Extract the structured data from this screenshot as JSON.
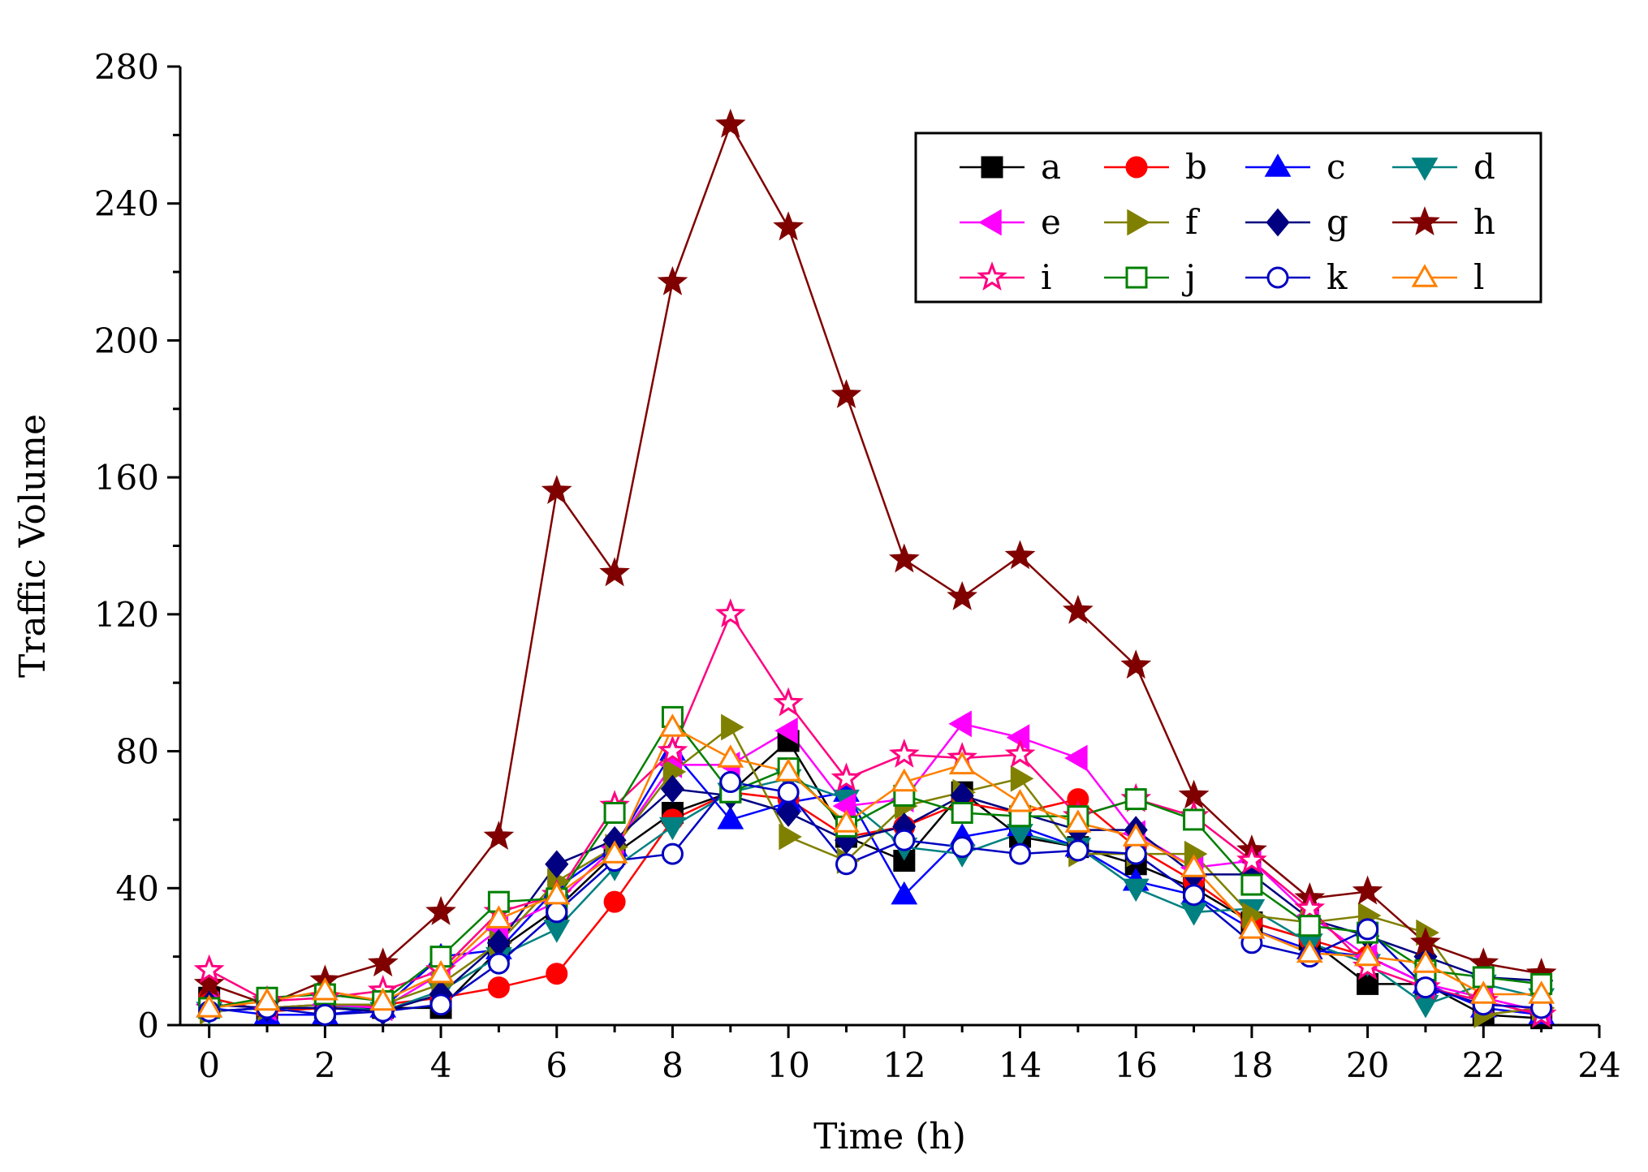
{
  "chart_data": {
    "type": "line",
    "title": "",
    "xlabel": "Time (h)",
    "ylabel": "Traffic Volume",
    "xlim": [
      -0.5,
      24
    ],
    "ylim": [
      0,
      280
    ],
    "xticks": [
      0,
      2,
      4,
      6,
      8,
      10,
      12,
      14,
      16,
      18,
      20,
      22,
      24
    ],
    "xtick_labels": [
      "0",
      "2",
      "4",
      "6",
      "8",
      "10",
      "12",
      "14",
      "16",
      "18",
      "20",
      "22",
      "24"
    ],
    "yticks": [
      0,
      40,
      80,
      120,
      160,
      200,
      240,
      280
    ],
    "ytick_labels": [
      "0",
      "40",
      "80",
      "120",
      "160",
      "200",
      "240",
      "280"
    ],
    "grid": false,
    "legend_position": "top-right",
    "x": [
      0,
      1,
      2,
      3,
      4,
      5,
      6,
      7,
      8,
      9,
      10,
      11,
      12,
      13,
      14,
      15,
      16,
      17,
      18,
      19,
      20,
      21,
      22,
      23
    ],
    "series": [
      {
        "name": "a",
        "color": "#000000",
        "marker": "square",
        "filled": true,
        "values": [
          8,
          4,
          5,
          5,
          5,
          22,
          34,
          50,
          62,
          68,
          83,
          55,
          48,
          68,
          55,
          52,
          47,
          40,
          30,
          25,
          12,
          12,
          3,
          2
        ]
      },
      {
        "name": "b",
        "color": "#ff0000",
        "marker": "circle",
        "filled": true,
        "values": [
          8,
          4,
          5,
          6,
          8,
          11,
          15,
          36,
          60,
          68,
          66,
          55,
          58,
          65,
          62,
          66,
          52,
          42,
          30,
          25,
          20,
          12,
          8,
          4
        ]
      },
      {
        "name": "c",
        "color": "#0000ff",
        "marker": "triangle-up",
        "filled": true,
        "values": [
          5,
          3,
          3,
          5,
          20,
          22,
          40,
          52,
          80,
          60,
          65,
          68,
          38,
          55,
          58,
          52,
          42,
          38,
          28,
          22,
          20,
          12,
          5,
          3
        ]
      },
      {
        "name": "d",
        "color": "#008080",
        "marker": "triangle-down",
        "filled": true,
        "values": [
          4,
          5,
          6,
          4,
          10,
          20,
          28,
          46,
          58,
          68,
          72,
          66,
          52,
          50,
          56,
          52,
          40,
          33,
          34,
          24,
          18,
          6,
          12,
          8
        ]
      },
      {
        "name": "e",
        "color": "#ff00ff",
        "marker": "triangle-left",
        "filled": true,
        "values": [
          6,
          5,
          6,
          5,
          15,
          28,
          36,
          52,
          76,
          76,
          86,
          64,
          66,
          88,
          84,
          78,
          56,
          46,
          48,
          32,
          20,
          12,
          8,
          4
        ]
      },
      {
        "name": "f",
        "color": "#808000",
        "marker": "triangle-right",
        "filled": true,
        "values": [
          4,
          5,
          6,
          6,
          12,
          24,
          42,
          52,
          74,
          87,
          55,
          48,
          64,
          68,
          72,
          50,
          50,
          50,
          32,
          30,
          32,
          27,
          3,
          5
        ]
      },
      {
        "name": "g",
        "color": "#000080",
        "marker": "diamond",
        "filled": true,
        "values": [
          6,
          5,
          5,
          4,
          9,
          24,
          47,
          54,
          69,
          67,
          62,
          54,
          58,
          67,
          62,
          57,
          57,
          44,
          44,
          31,
          26,
          20,
          14,
          13
        ]
      },
      {
        "name": "h",
        "color": "#800000",
        "marker": "star",
        "filled": true,
        "values": [
          12,
          6,
          13,
          18,
          33,
          55,
          156,
          132,
          217,
          263,
          233,
          184,
          136,
          125,
          137,
          121,
          105,
          67,
          51,
          37,
          39,
          24,
          18,
          15
        ]
      },
      {
        "name": "i",
        "color": "#ff0080",
        "marker": "star",
        "filled": false,
        "values": [
          16,
          7,
          8,
          10,
          16,
          33,
          38,
          64,
          80,
          120,
          94,
          72,
          79,
          78,
          79,
          61,
          66,
          61,
          48,
          34,
          17,
          11,
          7,
          3
        ]
      },
      {
        "name": "j",
        "color": "#008000",
        "marker": "square",
        "filled": false,
        "values": [
          5,
          8,
          9,
          7,
          20,
          36,
          37,
          62,
          90,
          68,
          75,
          58,
          67,
          62,
          61,
          61,
          66,
          60,
          41,
          29,
          27,
          16,
          14,
          12
        ]
      },
      {
        "name": "k",
        "color": "#0000c0",
        "marker": "circle",
        "filled": false,
        "values": [
          4,
          5,
          3,
          4,
          6,
          18,
          33,
          48,
          50,
          71,
          68,
          47,
          54,
          52,
          50,
          51,
          50,
          38,
          24,
          20,
          28,
          11,
          6,
          5
        ]
      },
      {
        "name": "l",
        "color": "#ff8000",
        "marker": "triangle-up",
        "filled": false,
        "values": [
          5,
          7,
          10,
          7,
          15,
          31,
          38,
          50,
          87,
          78,
          74,
          59,
          71,
          76,
          65,
          59,
          55,
          46,
          28,
          21,
          20,
          18,
          9,
          9
        ]
      }
    ]
  }
}
